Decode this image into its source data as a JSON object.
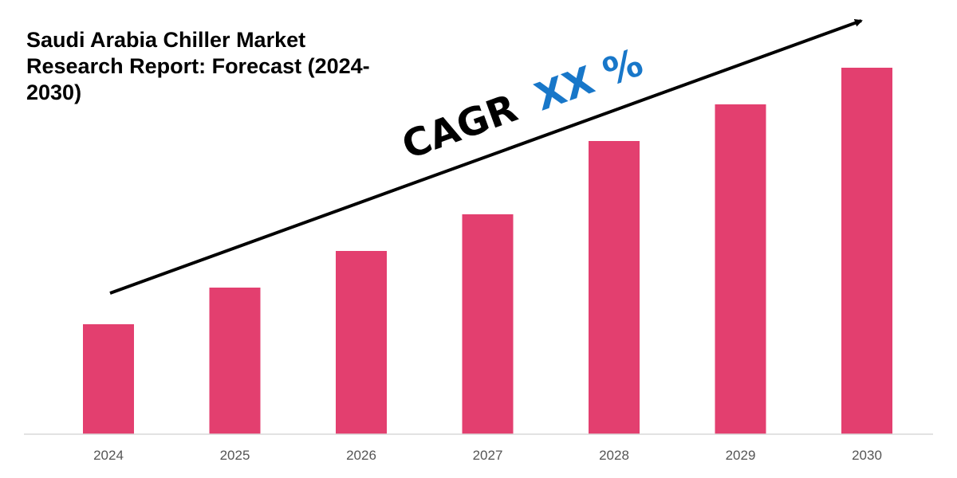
{
  "chart_data": {
    "type": "bar",
    "title": "Saudi Arabia Chiller Market Research Report: Forecast (2024-2030)",
    "categories": [
      "2024",
      "2025",
      "2026",
      "2027",
      "2028",
      "2029",
      "2030"
    ],
    "values": [
      30,
      40,
      50,
      60,
      80,
      90,
      100
    ],
    "value_note": "relative (no y-axis shown)",
    "ylim": [
      0,
      100
    ],
    "xlabel": "",
    "ylabel": "",
    "grid": false,
    "annotation": {
      "prefix": "CAGR",
      "value": "XX %"
    },
    "colors": {
      "bar": "#E33F6F",
      "cagr_value": "#1877C9",
      "arrow": "#000000",
      "axis": "#D9D9D9"
    }
  }
}
